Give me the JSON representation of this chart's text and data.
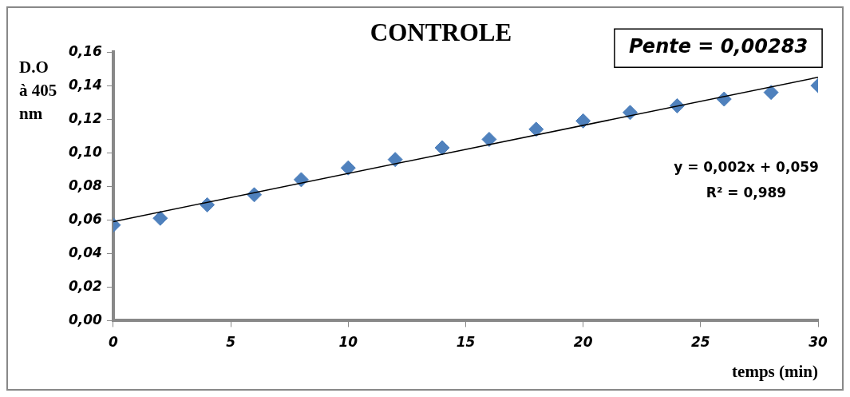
{
  "chart_data": {
    "type": "scatter",
    "title": "CONTROLE",
    "xlabel": "temps (min)",
    "ylabel": "D.O à 405 nm",
    "xlim": [
      0,
      30
    ],
    "xticks": [
      0,
      5,
      10,
      15,
      20,
      25,
      30
    ],
    "ylim": [
      0,
      0.16
    ],
    "yticks": [
      {
        "value": 0,
        "label": "0,00"
      },
      {
        "value": 0.02,
        "label": "0,02"
      },
      {
        "value": 0.04,
        "label": "0,04"
      },
      {
        "value": 0.06,
        "label": "0,06"
      },
      {
        "value": 0.08,
        "label": "0,08"
      },
      {
        "value": 0.1,
        "label": "0,10"
      },
      {
        "value": 0.12,
        "label": "0,12"
      },
      {
        "value": 0.14,
        "label": "0,14"
      },
      {
        "value": 0.16,
        "label": "0,16"
      }
    ],
    "grid": false,
    "legend": false,
    "annotations": [
      "Pente = 0,00283",
      "y = 0,002x + 0,059",
      "R² = 0,989"
    ],
    "series": [
      {
        "marker": "diamond",
        "color": "#4f81bd",
        "x": [
          0,
          2,
          4,
          6,
          8,
          10,
          12,
          14,
          16,
          18,
          20,
          22,
          24,
          26,
          28,
          30
        ],
        "values": [
          0.057,
          0.061,
          0.069,
          0.075,
          0.084,
          0.091,
          0.096,
          0.103,
          0.108,
          0.114,
          0.119,
          0.124,
          0.128,
          0.132,
          0.136,
          0.14
        ]
      },
      {
        "type": "line",
        "marker": "none",
        "color": "#000000",
        "x": [
          0,
          30
        ],
        "values": [
          0.059,
          0.145
        ]
      }
    ]
  }
}
